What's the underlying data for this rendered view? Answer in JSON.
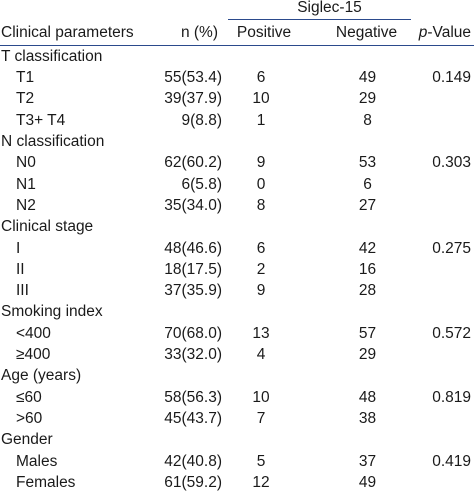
{
  "header": {
    "param": "Clinical parameters",
    "n": "n (%)",
    "group": "Siglec-15",
    "positive": "Positive",
    "negative": "Negative",
    "p_prefix": "p",
    "p_suffix": "-Value"
  },
  "rows": [
    {
      "type": "cat",
      "param": "T classification"
    },
    {
      "type": "sub",
      "param": "T1",
      "n": "55(53.4)",
      "pos": "6",
      "neg": "49",
      "p": "0.149"
    },
    {
      "type": "sub",
      "param": "T2",
      "n": "39(37.9)",
      "pos": "10",
      "neg": "29",
      "p": ""
    },
    {
      "type": "sub",
      "param": "T3+ T4",
      "n": "9(8.8)",
      "pos": "1",
      "neg": "8",
      "p": ""
    },
    {
      "type": "cat",
      "param": "N classification"
    },
    {
      "type": "sub",
      "param": "N0",
      "n": "62(60.2)",
      "pos": "9",
      "neg": "53",
      "p": "0.303"
    },
    {
      "type": "sub",
      "param": "N1",
      "n": "6(5.8)",
      "pos": "0",
      "neg": "6",
      "p": ""
    },
    {
      "type": "sub",
      "param": "N2",
      "n": "35(34.0)",
      "pos": "8",
      "neg": "27",
      "p": ""
    },
    {
      "type": "cat",
      "param": "Clinical stage"
    },
    {
      "type": "sub",
      "param": "I",
      "n": "48(46.6)",
      "pos": "6",
      "neg": "42",
      "p": "0.275"
    },
    {
      "type": "sub",
      "param": "II",
      "n": "18(17.5)",
      "pos": "2",
      "neg": "16",
      "p": ""
    },
    {
      "type": "sub",
      "param": "III",
      "n": "37(35.9)",
      "pos": "9",
      "neg": "28",
      "p": ""
    },
    {
      "type": "cat",
      "param": "Smoking index"
    },
    {
      "type": "sub",
      "param": "<400",
      "n": "70(68.0)",
      "pos": "13",
      "neg": "57",
      "p": "0.572"
    },
    {
      "type": "sub",
      "param": "≥400",
      "n": "33(32.0)",
      "pos": "4",
      "neg": "29",
      "p": ""
    },
    {
      "type": "cat",
      "param": "Age (years)"
    },
    {
      "type": "sub",
      "param": "≤60",
      "n": "58(56.3)",
      "pos": "10",
      "neg": "48",
      "p": "0.819"
    },
    {
      "type": "sub",
      "param": ">60",
      "n": "45(43.7)",
      "pos": "7",
      "neg": "38",
      "p": ""
    },
    {
      "type": "cat",
      "param": "Gender"
    },
    {
      "type": "sub",
      "param": "Males",
      "n": "42(40.8)",
      "pos": "5",
      "neg": "37",
      "p": "0.419"
    },
    {
      "type": "sub",
      "param": "Females",
      "n": "61(59.2)",
      "pos": "12",
      "neg": "49",
      "p": ""
    }
  ]
}
